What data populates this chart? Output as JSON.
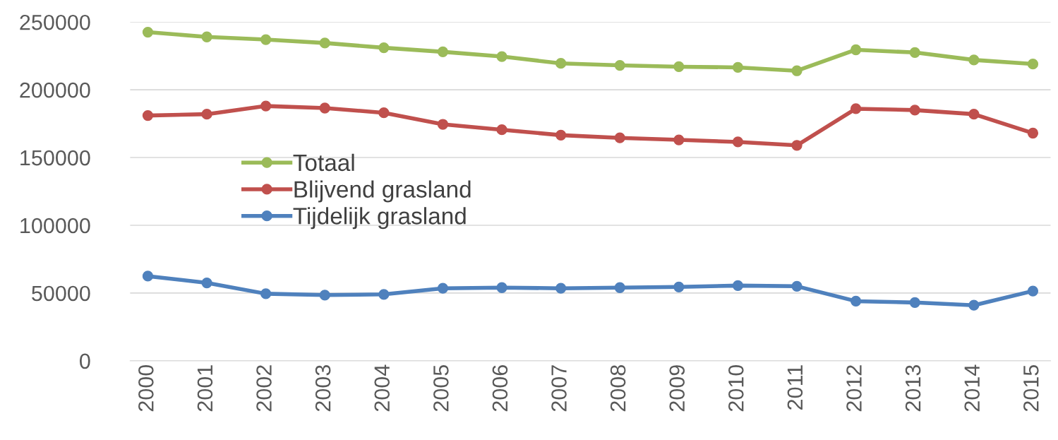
{
  "chart_data": {
    "type": "line",
    "categories": [
      "2000",
      "2001",
      "2002",
      "2003",
      "2004",
      "2005",
      "2006",
      "2007",
      "2008",
      "2009",
      "2010",
      "2011",
      "2012",
      "2013",
      "2014",
      "2015"
    ],
    "series": [
      {
        "name": "Totaal",
        "color": "#9bbb59",
        "values": [
          242500,
          239000,
          237000,
          234500,
          231000,
          228000,
          224500,
          219500,
          218000,
          217000,
          216500,
          214000,
          229500,
          227500,
          222000,
          219000
        ]
      },
      {
        "name": "Blijvend grasland",
        "color": "#c0504d",
        "values": [
          181000,
          182000,
          188000,
          186500,
          183000,
          174500,
          170500,
          166500,
          164500,
          163000,
          161500,
          159000,
          186000,
          185000,
          182000,
          168000
        ]
      },
      {
        "name": "Tijdelijk grasland",
        "color": "#4f81bd",
        "values": [
          62500,
          57500,
          49500,
          48500,
          49000,
          53500,
          54000,
          53500,
          54000,
          54500,
          55500,
          55000,
          44000,
          43000,
          41000,
          51500
        ]
      }
    ],
    "ylim": [
      0,
      250000
    ],
    "yticks": [
      0,
      50000,
      100000,
      150000,
      200000,
      250000
    ],
    "grid": "y",
    "legend": "center left",
    "marker": "circle",
    "line_style": "solid"
  }
}
